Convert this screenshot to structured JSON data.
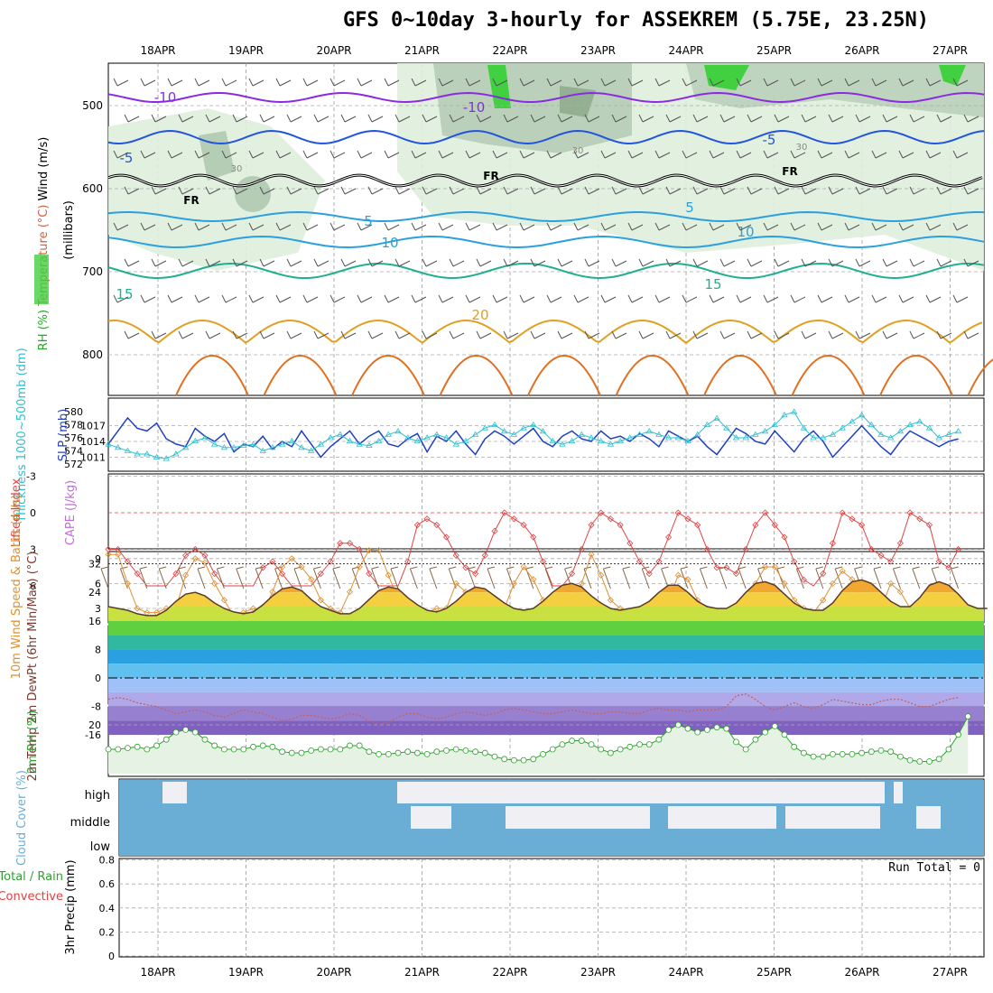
{
  "title": "GFS 0~10day 3-hourly for ASSEKREM (5.75E, 23.25N)",
  "colors": {
    "temperature_cold": "#8a2be2",
    "temperature_blue": "#2255dd",
    "temperature_cyan": "#2aa0e0",
    "temperature_teal": "#20b090",
    "temperature_warm": "#e0a020",
    "temperature_hot": "#e07020",
    "freezing": "#000000",
    "rh_light": "#dfeedd",
    "rh_mid": "#b0c8b0",
    "rh_green": "#40d040",
    "slp": "#2040c0",
    "thickness": "#30c0d0",
    "lifted_index": "#e04040",
    "wind": "#e09030",
    "rh2m": "#30a030",
    "cloud": "#6aaed6",
    "cloud_clear": "#f0f0f4"
  },
  "chart_data": [
    {
      "type": "contour",
      "panel": "upper-air",
      "ylabel_parts": [
        "RH (%)",
        "Temperature (°C)",
        "Wind (m/s)"
      ],
      "ylabel_unit": "(millibars)",
      "x_dates": [
        "18APR",
        "19APR",
        "20APR",
        "21APR",
        "22APR",
        "23APR",
        "24APR",
        "25APR",
        "26APR",
        "27APR"
      ],
      "y_ticks": [
        "500",
        "600",
        "700",
        "800"
      ],
      "contour_labels": [
        "-10",
        "-10",
        "-5",
        "-5",
        "FR",
        "FR",
        "FR",
        "5",
        "5",
        "10",
        "10",
        "15",
        "15",
        "20"
      ],
      "rh_labels": [
        "30",
        "30",
        "30"
      ]
    },
    {
      "type": "line",
      "panel": "slp-thickness",
      "ylabel_left": "Thickness 1000~500mb (dm)",
      "ylabel_right": "SLP (mb)",
      "y_ticks_thickness": [
        "580",
        "578",
        "576",
        "574",
        "572"
      ],
      "y_ticks_slp": [
        "1017",
        "1014",
        "1011"
      ],
      "series": [
        {
          "name": "SLP (mb)",
          "values": [
            1013.5,
            1016,
            1018.5,
            1016.5,
            1016,
            1017.5,
            1014.5,
            1013.5,
            1013,
            1016.5,
            1015,
            1014,
            1015.5,
            1012,
            1013.5,
            1013,
            1015,
            1012.5,
            1014,
            1013,
            1016,
            1013.5,
            1011,
            1013,
            1014.5,
            1016,
            1013.5,
            1015,
            1016,
            1013.5,
            1013,
            1014.5,
            1015.5,
            1012,
            1015,
            1014,
            1016,
            1013.5,
            1011.5,
            1014.5,
            1016,
            1015,
            1013.5,
            1015,
            1016.5,
            1014,
            1013,
            1015,
            1016,
            1014.5,
            1014,
            1016,
            1014.5,
            1015,
            1014,
            1015.5,
            1014.5,
            1013,
            1016,
            1015,
            1014,
            1015,
            1013,
            1011.5,
            1014,
            1016.5,
            1015.5,
            1014,
            1013.5,
            1016,
            1014,
            1012,
            1014.5,
            1016,
            1014,
            1011,
            1013,
            1015,
            1017,
            1015,
            1013,
            1011.5,
            1014,
            1016,
            1015,
            1014,
            1013,
            1014,
            1014.5
          ]
        },
        {
          "name": "Thickness (dm)",
          "values": [
            575,
            574.5,
            574,
            573.5,
            573.5,
            573,
            572.8,
            573.5,
            574.5,
            575.5,
            576,
            575,
            574.5,
            574.5,
            574.8,
            575,
            574,
            574.5,
            575,
            575.5,
            574.5,
            574,
            575,
            576,
            576.5,
            575.5,
            575,
            574.8,
            575.5,
            576.5,
            577,
            576,
            575.5,
            576,
            576.5,
            576,
            575,
            575.5,
            576.5,
            577.5,
            578,
            577,
            576.5,
            577.5,
            578,
            577,
            575.5,
            575,
            575.5,
            576.5,
            576,
            575.5,
            575,
            575.5,
            576,
            576.5,
            577,
            576.5,
            576,
            576,
            575.5,
            576.5,
            578,
            579,
            577.5,
            576,
            576,
            576.5,
            577,
            578,
            579.5,
            580,
            577.5,
            576,
            576,
            576.5,
            577.5,
            578.5,
            579.5,
            578,
            576.5,
            576,
            577,
            578,
            578.5,
            577.5,
            576,
            576.5,
            577
          ]
        }
      ]
    },
    {
      "type": "line",
      "panel": "cape-lifted-index",
      "ylabel_left": "CAPE (J/kg)",
      "ylabel_right": "Lifted Index",
      "y_ticks": [
        "-3",
        "0",
        "3",
        "6"
      ],
      "series": [
        {
          "name": "Lifted Index",
          "values": [
            3,
            3,
            4,
            5,
            7,
            8,
            7,
            5,
            3.5,
            3,
            3.5,
            5,
            6,
            8,
            7,
            6,
            4.5,
            4,
            5,
            6,
            7,
            6,
            5,
            4,
            2.5,
            2.5,
            3,
            5,
            6,
            7,
            6,
            4,
            1,
            0.5,
            1,
            2,
            3.5,
            4.5,
            5,
            3.5,
            1.5,
            0,
            0.5,
            1,
            2,
            4,
            6,
            7,
            5,
            3,
            1,
            0,
            0.5,
            1,
            2.5,
            4,
            5,
            4,
            2,
            0,
            0.5,
            1,
            3,
            4.5,
            4.5,
            5,
            3,
            1,
            0,
            1,
            2,
            4,
            5.5,
            6,
            5,
            2.5,
            0,
            0.5,
            1,
            3,
            3.5,
            4,
            2.5,
            0,
            0.5,
            1,
            4,
            4.5,
            3
          ]
        }
      ]
    },
    {
      "type": "line",
      "panel": "10m-wind",
      "ylabel": "10m Wind Speed & Barbs (m/s)",
      "y_ticks": [
        "9",
        "6",
        "3"
      ],
      "series": [
        {
          "name": "10m Wind Speed (m/s)",
          "values": [
            9.5,
            9.5,
            6,
            3,
            2.5,
            2.5,
            3,
            3,
            7,
            9,
            8.5,
            6,
            4,
            2,
            2.5,
            3,
            2.5,
            5,
            8,
            9,
            8,
            6.5,
            4,
            3,
            2.5,
            5,
            8,
            10,
            10,
            7,
            4,
            3.5,
            3,
            2.5,
            3,
            3,
            6,
            5,
            3.5,
            2.5,
            2.5,
            3,
            6,
            8,
            6.5,
            4,
            3,
            2.5,
            4,
            6,
            9.5,
            7,
            4,
            3,
            2.5,
            2.5,
            3,
            3,
            4,
            7,
            6.5,
            4,
            3,
            2.5,
            2,
            2.5,
            4,
            6,
            8,
            8,
            6,
            4,
            3,
            2.5,
            4,
            6,
            7.5,
            6.5,
            4,
            3,
            3,
            6,
            5,
            3,
            2.5,
            2,
            2.5,
            2.5,
            2.5
          ]
        }
      ]
    },
    {
      "type": "area",
      "panel": "2m-temp",
      "ylabel": "2m Temp 2m DewPt (6hr Min/Max) (°C)",
      "y_ticks": [
        "32",
        "24",
        "16",
        "8",
        "0",
        "-8",
        "-16"
      ],
      "series": [
        {
          "name": "2m Temp (°C)",
          "values": [
            20,
            19.5,
            19,
            18,
            17.5,
            17.5,
            19,
            21.5,
            23.5,
            24,
            23,
            21,
            19.5,
            18.5,
            18,
            18.5,
            20.5,
            23,
            25,
            25.5,
            24.5,
            22,
            20,
            19,
            18,
            18,
            19.5,
            22,
            24.5,
            25.5,
            25,
            22.5,
            20.5,
            19,
            18.5,
            19.5,
            21.5,
            24,
            25.5,
            25,
            23,
            21,
            19.5,
            19,
            19.5,
            21.5,
            24,
            26,
            26.5,
            25.5,
            23,
            21,
            19.5,
            19,
            19.5,
            20,
            21.5,
            24,
            26,
            26,
            24,
            21.5,
            20,
            19.5,
            19.5,
            21,
            24,
            26.5,
            27,
            26,
            23.5,
            21,
            19.5,
            19,
            19,
            21,
            24.5,
            27,
            27.5,
            26.5,
            24,
            21.5,
            20,
            20,
            22.5,
            26,
            27,
            26,
            23.5,
            20.5,
            19.5,
            19.5
          ]
        },
        {
          "name": "2m DewPt (°C)",
          "values": [
            -6,
            -5.5,
            -6,
            -7,
            -7.5,
            -8,
            -9,
            -10,
            -9.5,
            -9,
            -9.5,
            -10.5,
            -11,
            -10,
            -9,
            -9.5,
            -10,
            -11,
            -12,
            -11.5,
            -10.5,
            -10.5,
            -11,
            -11.5,
            -11,
            -10,
            -10.5,
            -12,
            -13,
            -12.5,
            -11,
            -10,
            -10,
            -11,
            -11.5,
            -11,
            -10,
            -9.5,
            -10,
            -10.5,
            -10,
            -9,
            -8.5,
            -9,
            -9.5,
            -10,
            -10,
            -9.5,
            -9,
            -9.5,
            -10,
            -10,
            -9.5,
            -9.5,
            -10,
            -10,
            -9,
            -8.5,
            -9,
            -9,
            -9.5,
            -9,
            -9,
            -9,
            -8,
            -5,
            -4.5,
            -6,
            -8,
            -9,
            -8,
            -7,
            -8,
            -8.5,
            -7.5,
            -6,
            -6.5,
            -7,
            -7.5,
            -7.5,
            -6.5,
            -6,
            -6,
            -7,
            -8,
            -8,
            -7,
            -6,
            -5.5
          ]
        }
      ]
    },
    {
      "type": "line",
      "panel": "2m-rh",
      "ylabel": "2m RH (%)",
      "y_ticks": [
        "20"
      ],
      "series": [
        {
          "name": "2m RH (%)",
          "values": [
            10,
            10,
            10.5,
            11,
            10,
            11.5,
            14,
            17,
            18,
            17,
            14,
            11.5,
            10,
            10,
            10,
            11,
            11.5,
            11,
            9,
            8.5,
            8.5,
            9.5,
            10,
            10,
            10,
            11.5,
            11.5,
            9,
            8,
            8,
            8.5,
            9,
            8.5,
            8,
            9,
            9.5,
            10,
            9.5,
            9,
            8.5,
            7,
            6,
            5.5,
            5.5,
            6,
            8,
            10,
            12,
            13.5,
            13.5,
            12,
            10,
            8.5,
            10,
            11,
            12,
            12,
            14,
            18,
            20,
            18.5,
            17,
            18,
            19,
            18.5,
            13,
            10,
            14,
            17,
            19.5,
            16,
            11,
            8.5,
            7,
            7,
            8,
            8,
            8,
            8.5,
            9,
            9.5,
            9,
            7,
            5.5,
            5,
            5,
            6,
            10,
            16,
            23.5
          ]
        }
      ]
    },
    {
      "type": "heatmap",
      "panel": "cloud-cover",
      "ylabel": "Cloud Cover (%)",
      "y_levels": [
        "high",
        "middle",
        "low"
      ]
    },
    {
      "type": "bar",
      "panel": "precip",
      "ylabel_left": "3hr Precip (mm)",
      "ylabel_parts": [
        "Total / Rain",
        "Convective"
      ],
      "y_ticks": [
        "0.8",
        "0.6",
        "0.4",
        "0.2",
        "0"
      ],
      "run_total": "Run Total = 0",
      "x_dates": [
        "18APR",
        "19APR",
        "20APR",
        "21APR",
        "22APR",
        "23APR",
        "24APR",
        "25APR",
        "26APR",
        "27APR"
      ]
    }
  ]
}
